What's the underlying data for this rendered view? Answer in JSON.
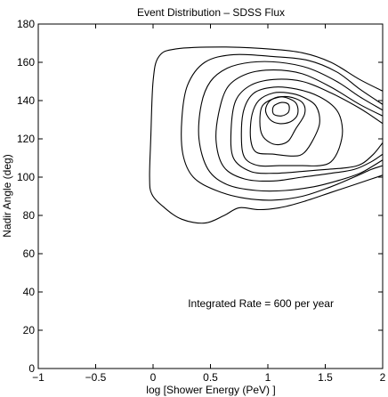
{
  "chart_data": {
    "type": "line",
    "subtype": "contour",
    "title": "Event Distribution – SDSS Flux",
    "xlabel": "log [Shower Energy (PeV) ]",
    "ylabel": "Nadir Angle (deg)",
    "xlim": [
      -1,
      2
    ],
    "ylim": [
      0,
      180
    ],
    "xticks": [
      -1,
      -0.5,
      0,
      0.5,
      1,
      1.5,
      2
    ],
    "xtick_labels": [
      "−1",
      "−0.5",
      "0",
      "0.5",
      "1",
      "1.5",
      "2"
    ],
    "yticks": [
      0,
      20,
      40,
      60,
      80,
      100,
      120,
      140,
      160,
      180
    ],
    "ytick_labels": [
      "0",
      "20",
      "40",
      "60",
      "80",
      "100",
      "120",
      "140",
      "160",
      "180"
    ],
    "grid": false,
    "annotation": {
      "text": "Integrated Rate = 600 per year",
      "x": 0.8,
      "y": 34
    },
    "contours": [
      {
        "closed": false,
        "points": [
          [
            2.0,
            145
          ],
          [
            1.8,
            151
          ],
          [
            1.55,
            160
          ],
          [
            1.3,
            165
          ],
          [
            1.0,
            167
          ],
          [
            0.6,
            168
          ],
          [
            0.2,
            167
          ],
          [
            0.05,
            163
          ],
          [
            0.0,
            150
          ],
          [
            -0.02,
            120
          ],
          [
            -0.03,
            100
          ],
          [
            -0.01,
            91
          ],
          [
            0.1,
            84
          ],
          [
            0.25,
            78
          ],
          [
            0.45,
            76
          ],
          [
            0.62,
            80
          ],
          [
            0.75,
            84
          ],
          [
            0.92,
            83
          ],
          [
            1.1,
            84
          ],
          [
            1.3,
            87
          ],
          [
            1.55,
            92
          ],
          [
            1.75,
            96
          ],
          [
            1.9,
            99
          ],
          [
            2.0,
            101
          ]
        ]
      },
      {
        "closed": false,
        "points": [
          [
            2.0,
            138
          ],
          [
            1.8,
            146
          ],
          [
            1.6,
            155
          ],
          [
            1.35,
            161
          ],
          [
            1.05,
            163
          ],
          [
            0.7,
            164
          ],
          [
            0.45,
            160
          ],
          [
            0.3,
            148
          ],
          [
            0.25,
            130
          ],
          [
            0.26,
            112
          ],
          [
            0.35,
            100
          ],
          [
            0.55,
            93
          ],
          [
            0.8,
            89
          ],
          [
            1.05,
            88
          ],
          [
            1.3,
            90
          ],
          [
            1.55,
            95
          ],
          [
            1.75,
            100
          ],
          [
            1.9,
            104
          ],
          [
            2.0,
            106
          ]
        ]
      },
      {
        "closed": false,
        "points": [
          [
            2.0,
            135
          ],
          [
            1.8,
            142
          ],
          [
            1.6,
            150
          ],
          [
            1.35,
            157
          ],
          [
            1.1,
            160
          ],
          [
            0.85,
            160
          ],
          [
            0.65,
            157
          ],
          [
            0.5,
            150
          ],
          [
            0.42,
            138
          ],
          [
            0.4,
            120
          ],
          [
            0.48,
            104
          ],
          [
            0.65,
            96
          ],
          [
            0.9,
            93
          ],
          [
            1.15,
            93
          ],
          [
            1.4,
            95
          ],
          [
            1.6,
            98
          ],
          [
            1.8,
            102
          ],
          [
            1.92,
            106
          ],
          [
            2.0,
            109
          ]
        ]
      },
      {
        "closed": false,
        "points": [
          [
            2.0,
            132
          ],
          [
            1.8,
            138
          ],
          [
            1.55,
            147
          ],
          [
            1.3,
            154
          ],
          [
            1.05,
            156
          ],
          [
            0.82,
            154
          ],
          [
            0.65,
            147
          ],
          [
            0.57,
            133
          ],
          [
            0.55,
            118
          ],
          [
            0.62,
            105
          ],
          [
            0.8,
            99
          ],
          [
            1.05,
            98
          ],
          [
            1.3,
            100
          ],
          [
            1.55,
            102
          ],
          [
            1.75,
            104
          ],
          [
            1.9,
            108
          ],
          [
            2.0,
            112
          ]
        ]
      },
      {
        "closed": false,
        "points": [
          [
            2.0,
            128
          ],
          [
            1.8,
            136
          ],
          [
            1.55,
            144
          ],
          [
            1.3,
            150
          ],
          [
            1.05,
            151
          ],
          [
            0.85,
            148
          ],
          [
            0.72,
            140
          ],
          [
            0.68,
            125
          ],
          [
            0.7,
            110
          ],
          [
            0.85,
            103
          ],
          [
            1.05,
            102
          ],
          [
            1.3,
            103
          ],
          [
            1.5,
            104
          ],
          [
            1.7,
            105
          ],
          [
            1.82,
            107
          ],
          [
            1.92,
            112
          ],
          [
            2.0,
            118
          ]
        ]
      },
      {
        "closed": true,
        "points": [
          [
            1.05,
            147
          ],
          [
            0.88,
            144
          ],
          [
            0.79,
            135
          ],
          [
            0.77,
            120
          ],
          [
            0.8,
            110
          ],
          [
            0.92,
            106
          ],
          [
            1.1,
            106
          ],
          [
            1.3,
            106
          ],
          [
            1.45,
            106
          ],
          [
            1.55,
            108
          ],
          [
            1.62,
            115
          ],
          [
            1.65,
            125
          ],
          [
            1.6,
            135
          ],
          [
            1.45,
            142
          ],
          [
            1.25,
            146
          ]
        ]
      },
      {
        "closed": true,
        "points": [
          [
            1.05,
            144
          ],
          [
            0.92,
            140
          ],
          [
            0.86,
            132
          ],
          [
            0.85,
            120
          ],
          [
            0.9,
            113
          ],
          [
            1.05,
            112
          ],
          [
            1.2,
            111
          ],
          [
            1.3,
            112
          ],
          [
            1.38,
            118
          ],
          [
            1.45,
            128
          ],
          [
            1.42,
            137
          ],
          [
            1.3,
            142
          ],
          [
            1.18,
            144
          ]
        ]
      },
      {
        "closed": true,
        "points": [
          [
            1.05,
            141
          ],
          [
            0.95,
            137
          ],
          [
            0.93,
            129
          ],
          [
            0.95,
            122
          ],
          [
            1.02,
            118
          ],
          [
            1.1,
            117
          ],
          [
            1.18,
            119
          ],
          [
            1.24,
            125
          ],
          [
            1.32,
            133
          ],
          [
            1.3,
            139
          ],
          [
            1.18,
            142
          ]
        ]
      },
      {
        "closed": true,
        "points": [
          [
            1.12,
            142
          ],
          [
            1.02,
            140
          ],
          [
            0.98,
            135
          ],
          [
            1.02,
            130
          ],
          [
            1.1,
            128
          ],
          [
            1.2,
            129
          ],
          [
            1.26,
            133
          ],
          [
            1.24,
            139
          ]
        ]
      },
      {
        "closed": true,
        "points": [
          [
            1.12,
            139
          ],
          [
            1.05,
            137
          ],
          [
            1.05,
            133
          ],
          [
            1.12,
            132
          ],
          [
            1.18,
            134
          ],
          [
            1.18,
            138
          ]
        ]
      }
    ]
  }
}
